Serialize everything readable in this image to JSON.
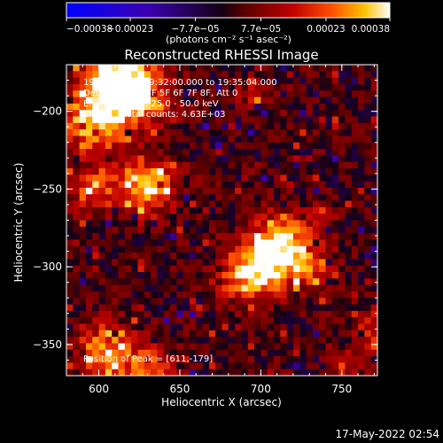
{
  "chart_data": {
    "type": "heatmap",
    "title": "Reconstructed RHESSI Image",
    "xlabel": "Heliocentric X (arcsec)",
    "ylabel": "Heliocentric Y (arcsec)",
    "xlim": [
      580,
      772
    ],
    "ylim": [
      -370,
      -170
    ],
    "x_ticks": [
      600,
      650,
      700,
      750
    ],
    "y_ticks": [
      -200,
      -250,
      -300,
      -350
    ],
    "x_tick_labels": [
      "600",
      "650",
      "700",
      "750"
    ],
    "y_tick_labels": [
      "−200",
      "−250",
      "−300",
      "−350"
    ],
    "colorbar": {
      "ticks": [
        -0.00038,
        -0.00023,
        -7.7e-05,
        7.7e-05,
        0.00023,
        0.00038
      ],
      "tick_labels": [
        "−0.00038",
        "−0.00023",
        "−7.7e−05",
        "7.7e−05",
        "0.00023",
        "0.00038"
      ],
      "unit_label": "(photons cm⁻² s⁻¹ asec⁻²)",
      "range": [
        -0.00038,
        0.00038
      ]
    },
    "info_lines": [
      "19-Dec-2011 19:32:00.000 to 19:35:04.000",
      "Detectors: 3F 4F 5F 6F 7F 8F, Att 0",
      "Energy Range: 25.0 - 50.0 keV",
      "Clean     Total counts: 4.63E+03"
    ],
    "peak_label": "Position of Peak = [611,-179]",
    "sources": [
      {
        "x": 611,
        "y": -179,
        "sigma": 14,
        "amp": 0.00038
      },
      {
        "x": 598,
        "y": -205,
        "sigma": 16,
        "amp": 0.00031
      },
      {
        "x": 628,
        "y": -190,
        "sigma": 12,
        "amp": 0.00024
      },
      {
        "x": 628,
        "y": -248,
        "sigma": 13,
        "amp": 0.00033
      },
      {
        "x": 596,
        "y": -252,
        "sigma": 9,
        "amp": 0.00022
      },
      {
        "x": 712,
        "y": -285,
        "sigma": 13,
        "amp": 0.00035
      },
      {
        "x": 695,
        "y": -305,
        "sigma": 13,
        "amp": 0.00034
      },
      {
        "x": 730,
        "y": -300,
        "sigma": 10,
        "amp": 0.00021
      },
      {
        "x": 603,
        "y": -355,
        "sigma": 13,
        "amp": 0.00027
      },
      {
        "x": 630,
        "y": -366,
        "sigma": 11,
        "amp": 0.0002
      },
      {
        "x": 768,
        "y": -340,
        "sigma": 9,
        "amp": 0.00018
      },
      {
        "x": 755,
        "y": -365,
        "sigma": 7,
        "amp": 0.00014
      },
      {
        "x": 695,
        "y": -188,
        "sigma": 7,
        "amp": 0.00012
      },
      {
        "x": 738,
        "y": -265,
        "sigma": 6,
        "amp": 0.00012
      }
    ],
    "background_level": 1.2e-05,
    "grid": false
  },
  "footer": {
    "timestamp": "17-May-2022 02:54"
  }
}
